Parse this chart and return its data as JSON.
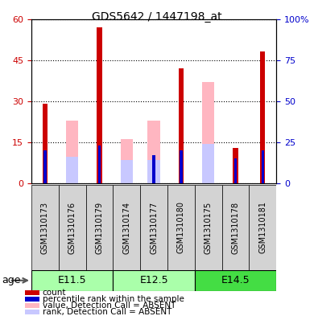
{
  "title": "GDS5642 / 1447198_at",
  "samples": [
    "GSM1310173",
    "GSM1310176",
    "GSM1310179",
    "GSM1310174",
    "GSM1310177",
    "GSM1310180",
    "GSM1310175",
    "GSM1310178",
    "GSM1310181"
  ],
  "age_groups": [
    {
      "label": "E11.5",
      "start": 0,
      "end": 3,
      "color": "#AAFFAA"
    },
    {
      "label": "E12.5",
      "start": 3,
      "end": 6,
      "color": "#AAFFAA"
    },
    {
      "label": "E14.5",
      "start": 6,
      "end": 9,
      "color": "#44DD44"
    }
  ],
  "count_values": [
    29,
    0,
    57,
    0,
    0,
    42,
    0,
    13,
    48
  ],
  "rank_values": [
    20,
    0,
    23,
    0,
    17,
    20,
    0,
    15,
    20
  ],
  "absent_value": [
    0,
    23,
    0,
    16,
    23,
    0,
    37,
    0,
    0
  ],
  "absent_rank": [
    0,
    16,
    0,
    14,
    14,
    0,
    24,
    0,
    0
  ],
  "count_color": "#CC0000",
  "rank_color": "#0000CC",
  "absent_value_color": "#FFB6C1",
  "absent_rank_color": "#C8C8FF",
  "ylim_left": [
    0,
    60
  ],
  "ylim_right": [
    0,
    100
  ],
  "yticks_left": [
    0,
    15,
    30,
    45,
    60
  ],
  "yticks_right": [
    0,
    25,
    50,
    75,
    100
  ],
  "plot_bg": "#FFFFFF",
  "tick_bg": "#D3D3D3",
  "fig_bg": "#FFFFFF"
}
